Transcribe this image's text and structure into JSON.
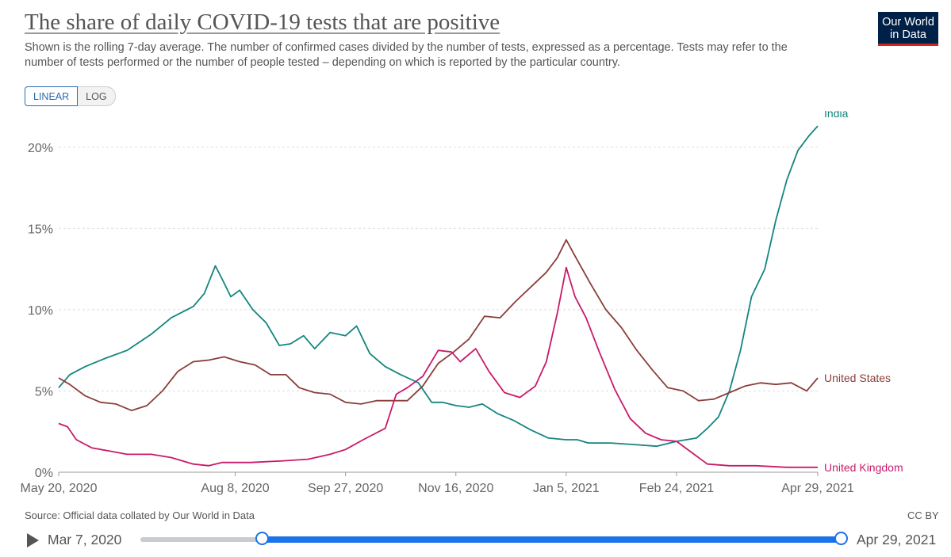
{
  "header": {
    "title": "The share of daily COVID-19 tests that are positive",
    "subtitle": "Shown is the rolling 7-day average. The number of confirmed cases divided by the number of tests, expressed as a percentage. Tests may refer to the number of tests performed or the number of people tested – depending on which is reported by the particular country.",
    "logo_line1": "Our World",
    "logo_line2": "in Data"
  },
  "controls": {
    "linear_label": "LINEAR",
    "log_label": "LOG",
    "active": "linear"
  },
  "footer": {
    "source": "Source: Official data collated by Our World in Data",
    "license": "CC BY"
  },
  "timeline": {
    "start_label": "Mar 7, 2020",
    "end_label": "Apr 29, 2021",
    "start_fraction": 0.174,
    "end_fraction": 1.0
  },
  "colors": {
    "india": "#14857f",
    "united_states": "#8a3e3a",
    "united_kingdom": "#c81a6b",
    "grid": "#dddddd",
    "axis": "#666666",
    "accent": "#1a73e8"
  },
  "chart_data": {
    "type": "line",
    "xlim": [
      "2020-05-20",
      "2021-04-29"
    ],
    "ylim": [
      0,
      21.5
    ],
    "y_ticks": [
      0,
      5,
      10,
      15,
      20
    ],
    "y_tick_labels": [
      "0%",
      "5%",
      "10%",
      "15%",
      "20%"
    ],
    "x_ticks": [
      "2020-05-20",
      "2020-08-08",
      "2020-09-27",
      "2020-11-16",
      "2021-01-05",
      "2021-02-24",
      "2021-04-29"
    ],
    "x_tick_labels": [
      "May 20, 2020",
      "Aug 8, 2020",
      "Sep 27, 2020",
      "Nov 16, 2020",
      "Jan 5, 2021",
      "Feb 24, 2021",
      "Apr 29, 2021"
    ],
    "grid": "horizontal dashed",
    "legend": "inline labels at line ends",
    "series": [
      {
        "name": "India",
        "points": [
          [
            "2020-05-20",
            5.2
          ],
          [
            "2020-05-25",
            6.0
          ],
          [
            "2020-06-01",
            6.5
          ],
          [
            "2020-06-10",
            7.0
          ],
          [
            "2020-06-20",
            7.5
          ],
          [
            "2020-07-01",
            8.5
          ],
          [
            "2020-07-10",
            9.5
          ],
          [
            "2020-07-20",
            10.2
          ],
          [
            "2020-07-25",
            11.0
          ],
          [
            "2020-07-30",
            12.7
          ],
          [
            "2020-08-02",
            11.9
          ],
          [
            "2020-08-06",
            10.8
          ],
          [
            "2020-08-10",
            11.2
          ],
          [
            "2020-08-16",
            10.0
          ],
          [
            "2020-08-22",
            9.2
          ],
          [
            "2020-08-28",
            7.8
          ],
          [
            "2020-09-02",
            7.9
          ],
          [
            "2020-09-08",
            8.4
          ],
          [
            "2020-09-13",
            7.6
          ],
          [
            "2020-09-20",
            8.6
          ],
          [
            "2020-09-27",
            8.4
          ],
          [
            "2020-10-02",
            9.0
          ],
          [
            "2020-10-08",
            7.3
          ],
          [
            "2020-10-15",
            6.5
          ],
          [
            "2020-10-22",
            6.0
          ],
          [
            "2020-10-30",
            5.5
          ],
          [
            "2020-11-05",
            4.3
          ],
          [
            "2020-11-10",
            4.3
          ],
          [
            "2020-11-16",
            4.1
          ],
          [
            "2020-11-22",
            4.0
          ],
          [
            "2020-11-28",
            4.2
          ],
          [
            "2020-12-05",
            3.6
          ],
          [
            "2020-12-12",
            3.2
          ],
          [
            "2020-12-20",
            2.6
          ],
          [
            "2020-12-28",
            2.1
          ],
          [
            "2021-01-05",
            2.0
          ],
          [
            "2021-01-10",
            2.0
          ],
          [
            "2021-01-15",
            1.8
          ],
          [
            "2021-01-25",
            1.8
          ],
          [
            "2021-02-05",
            1.7
          ],
          [
            "2021-02-15",
            1.6
          ],
          [
            "2021-02-24",
            1.9
          ],
          [
            "2021-03-05",
            2.1
          ],
          [
            "2021-03-10",
            2.7
          ],
          [
            "2021-03-15",
            3.4
          ],
          [
            "2021-03-20",
            5.0
          ],
          [
            "2021-03-25",
            7.5
          ],
          [
            "2021-03-30",
            10.8
          ],
          [
            "2021-04-05",
            12.5
          ],
          [
            "2021-04-10",
            15.5
          ],
          [
            "2021-04-15",
            18.0
          ],
          [
            "2021-04-20",
            19.8
          ],
          [
            "2021-04-25",
            20.7
          ],
          [
            "2021-04-29",
            21.3
          ]
        ]
      },
      {
        "name": "United States",
        "points": [
          [
            "2020-05-20",
            5.8
          ],
          [
            "2020-05-25",
            5.4
          ],
          [
            "2020-06-01",
            4.7
          ],
          [
            "2020-06-08",
            4.3
          ],
          [
            "2020-06-15",
            4.2
          ],
          [
            "2020-06-22",
            3.8
          ],
          [
            "2020-06-29",
            4.1
          ],
          [
            "2020-07-06",
            5.0
          ],
          [
            "2020-07-13",
            6.2
          ],
          [
            "2020-07-20",
            6.8
          ],
          [
            "2020-07-27",
            6.9
          ],
          [
            "2020-08-03",
            7.1
          ],
          [
            "2020-08-10",
            6.8
          ],
          [
            "2020-08-17",
            6.6
          ],
          [
            "2020-08-24",
            6.0
          ],
          [
            "2020-08-31",
            6.0
          ],
          [
            "2020-09-06",
            5.2
          ],
          [
            "2020-09-13",
            4.9
          ],
          [
            "2020-09-20",
            4.8
          ],
          [
            "2020-09-27",
            4.3
          ],
          [
            "2020-10-04",
            4.2
          ],
          [
            "2020-10-11",
            4.4
          ],
          [
            "2020-10-18",
            4.4
          ],
          [
            "2020-10-25",
            4.4
          ],
          [
            "2020-11-01",
            5.3
          ],
          [
            "2020-11-08",
            6.7
          ],
          [
            "2020-11-15",
            7.4
          ],
          [
            "2020-11-22",
            8.2
          ],
          [
            "2020-11-29",
            9.6
          ],
          [
            "2020-12-06",
            9.5
          ],
          [
            "2020-12-13",
            10.5
          ],
          [
            "2020-12-20",
            11.4
          ],
          [
            "2020-12-27",
            12.3
          ],
          [
            "2021-01-01",
            13.2
          ],
          [
            "2021-01-05",
            14.3
          ],
          [
            "2021-01-09",
            13.3
          ],
          [
            "2021-01-16",
            11.6
          ],
          [
            "2021-01-23",
            10.0
          ],
          [
            "2021-01-30",
            8.9
          ],
          [
            "2021-02-06",
            7.5
          ],
          [
            "2021-02-13",
            6.3
          ],
          [
            "2021-02-20",
            5.2
          ],
          [
            "2021-02-27",
            5.0
          ],
          [
            "2021-03-06",
            4.4
          ],
          [
            "2021-03-13",
            4.5
          ],
          [
            "2021-03-20",
            4.9
          ],
          [
            "2021-03-27",
            5.3
          ],
          [
            "2021-04-03",
            5.5
          ],
          [
            "2021-04-10",
            5.4
          ],
          [
            "2021-04-17",
            5.5
          ],
          [
            "2021-04-24",
            5.0
          ],
          [
            "2021-04-29",
            5.8
          ]
        ]
      },
      {
        "name": "United Kingdom",
        "points": [
          [
            "2020-05-20",
            3.0
          ],
          [
            "2020-05-24",
            2.8
          ],
          [
            "2020-05-28",
            2.0
          ],
          [
            "2020-06-04",
            1.5
          ],
          [
            "2020-06-12",
            1.3
          ],
          [
            "2020-06-20",
            1.1
          ],
          [
            "2020-07-01",
            1.1
          ],
          [
            "2020-07-10",
            0.9
          ],
          [
            "2020-07-20",
            0.5
          ],
          [
            "2020-07-27",
            0.4
          ],
          [
            "2020-08-02",
            0.6
          ],
          [
            "2020-08-15",
            0.6
          ],
          [
            "2020-08-30",
            0.7
          ],
          [
            "2020-09-10",
            0.8
          ],
          [
            "2020-09-20",
            1.1
          ],
          [
            "2020-09-27",
            1.4
          ],
          [
            "2020-10-05",
            2.0
          ],
          [
            "2020-10-15",
            2.7
          ],
          [
            "2020-10-20",
            4.8
          ],
          [
            "2020-10-25",
            5.2
          ],
          [
            "2020-11-01",
            5.9
          ],
          [
            "2020-11-08",
            7.5
          ],
          [
            "2020-11-14",
            7.4
          ],
          [
            "2020-11-18",
            6.8
          ],
          [
            "2020-11-25",
            7.6
          ],
          [
            "2020-12-01",
            6.2
          ],
          [
            "2020-12-08",
            4.9
          ],
          [
            "2020-12-15",
            4.6
          ],
          [
            "2020-12-22",
            5.3
          ],
          [
            "2020-12-27",
            6.8
          ],
          [
            "2021-01-01",
            9.8
          ],
          [
            "2021-01-05",
            12.6
          ],
          [
            "2021-01-09",
            10.8
          ],
          [
            "2021-01-14",
            9.5
          ],
          [
            "2021-01-20",
            7.4
          ],
          [
            "2021-01-27",
            5.1
          ],
          [
            "2021-02-03",
            3.3
          ],
          [
            "2021-02-10",
            2.4
          ],
          [
            "2021-02-17",
            2.0
          ],
          [
            "2021-02-24",
            1.9
          ],
          [
            "2021-03-03",
            1.2
          ],
          [
            "2021-03-10",
            0.5
          ],
          [
            "2021-03-20",
            0.4
          ],
          [
            "2021-04-01",
            0.4
          ],
          [
            "2021-04-15",
            0.3
          ],
          [
            "2021-04-29",
            0.3
          ]
        ]
      }
    ]
  }
}
